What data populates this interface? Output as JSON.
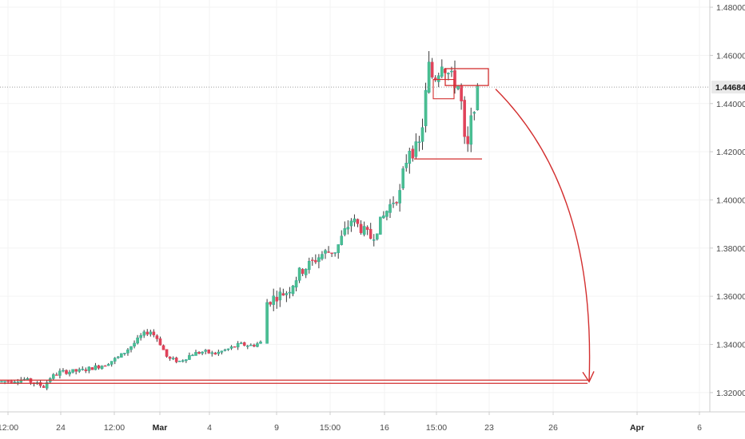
{
  "chart_data": {
    "type": "candlestick",
    "title": "",
    "xlabel": "",
    "ylabel": "",
    "ylim": [
      1.312,
      1.483
    ],
    "x_tick_labels": [
      "12:00",
      "24",
      "12:00",
      "Mar",
      "4",
      "9",
      "15:00",
      "16",
      "15:00",
      "23",
      "26",
      "Apr",
      "6"
    ],
    "x_tick_bold": [
      "Mar",
      "Apr"
    ],
    "y_tick_labels": [
      "1.48000",
      "1.46000",
      "1.44000",
      "1.42000",
      "1.40000",
      "1.38000",
      "1.36000",
      "1.34000",
      "1.32000"
    ],
    "y_ticks": [
      1.48,
      1.46,
      1.44,
      1.42,
      1.4,
      1.38,
      1.36,
      1.34,
      1.32
    ],
    "last_price": 1.44684,
    "last_price_label": "1.44684",
    "price_path": [
      [
        0,
        1.3245
      ],
      [
        30,
        1.3255
      ],
      [
        55,
        1.3225
      ],
      [
        62,
        1.326
      ],
      [
        75,
        1.3285
      ],
      [
        100,
        1.329
      ],
      [
        130,
        1.3315
      ],
      [
        150,
        1.335
      ],
      [
        168,
        1.3405
      ],
      [
        178,
        1.344
      ],
      [
        188,
        1.3455
      ],
      [
        198,
        1.342
      ],
      [
        210,
        1.334
      ],
      [
        225,
        1.333
      ],
      [
        240,
        1.336
      ],
      [
        255,
        1.337
      ],
      [
        268,
        1.336
      ],
      [
        285,
        1.338
      ],
      [
        300,
        1.34
      ],
      [
        315,
        1.3395
      ],
      [
        328,
        1.341
      ],
      [
        332,
        1.357
      ],
      [
        345,
        1.36
      ],
      [
        360,
        1.362
      ],
      [
        375,
        1.37
      ],
      [
        390,
        1.374
      ],
      [
        405,
        1.378
      ],
      [
        420,
        1.379
      ],
      [
        430,
        1.386
      ],
      [
        440,
        1.392
      ],
      [
        452,
        1.388
      ],
      [
        465,
        1.384
      ],
      [
        478,
        1.392
      ],
      [
        490,
        1.399
      ],
      [
        500,
        1.402
      ],
      [
        505,
        1.412
      ],
      [
        512,
        1.422
      ],
      [
        518,
        1.42
      ],
      [
        525,
        1.423
      ],
      [
        530,
        1.435
      ],
      [
        536,
        1.456
      ],
      [
        542,
        1.45
      ],
      [
        548,
        1.453
      ],
      [
        553,
        1.458
      ],
      [
        558,
        1.454
      ],
      [
        566,
        1.45
      ],
      [
        574,
        1.447
      ],
      [
        578,
        1.438
      ],
      [
        582,
        1.42
      ],
      [
        586,
        1.422
      ],
      [
        590,
        1.435
      ],
      [
        595,
        1.442
      ],
      [
        600,
        1.4465
      ]
    ],
    "annotations": {
      "support_line": {
        "y": 1.3245,
        "x_from": 0,
        "x_to": 735
      },
      "upper_box": {
        "y_low": 1.4475,
        "y_high": 1.4545,
        "x_from": 557,
        "x_to": 611
      },
      "inner_box": {
        "y_low": 1.442,
        "y_high": 1.45,
        "x_from": 542,
        "x_to": 568
      },
      "lower_line": {
        "y": 1.417,
        "x_from": 518,
        "x_to": 603
      },
      "arrow": {
        "from": [
          620,
          1.446
        ],
        "to": [
          737,
          1.3245
        ]
      }
    }
  },
  "colors": {
    "up": "#26a69a",
    "up_fill": "#4cbf8f",
    "down": "#e0435a",
    "wick": "#3a3a3a",
    "annotation": "#d32f2f",
    "grid": "#f3f3f3",
    "axis_line": "#cccccc",
    "price_line": "#9e9e9e",
    "badge_bg": "#e9e9e9"
  }
}
